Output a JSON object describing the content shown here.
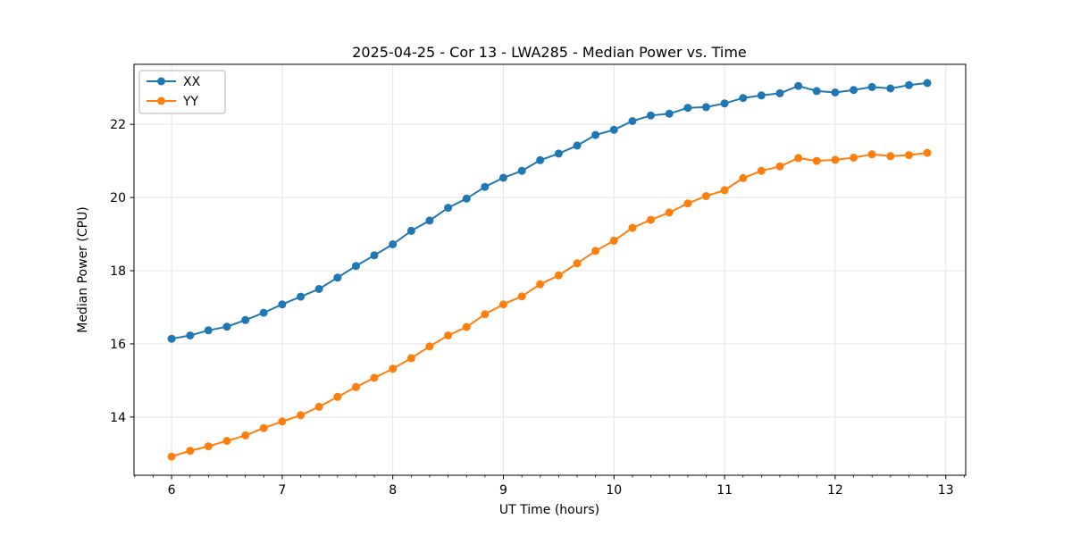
{
  "chart_data": {
    "type": "line",
    "title": "2025-04-25 - Cor 13 - LWA285 - Median Power vs. Time",
    "xlabel": "UT Time (hours)",
    "ylabel": "Median Power (CPU)",
    "xlim": [
      5.66,
      13.18
    ],
    "ylim": [
      12.41,
      23.64
    ],
    "xticks": [
      6,
      7,
      8,
      9,
      10,
      11,
      12,
      13
    ],
    "yticks": [
      14,
      16,
      18,
      20,
      22
    ],
    "x_minor_step": 0.16667,
    "grid": true,
    "grid_color": "#e4e4e4",
    "background": "#ffffff",
    "legend_position": "upper-left",
    "x": [
      6.0,
      6.167,
      6.333,
      6.5,
      6.667,
      6.833,
      7.0,
      7.167,
      7.333,
      7.5,
      7.667,
      7.833,
      8.0,
      8.167,
      8.333,
      8.5,
      8.667,
      8.833,
      9.0,
      9.167,
      9.333,
      9.5,
      9.667,
      9.833,
      10.0,
      10.167,
      10.333,
      10.5,
      10.667,
      10.833,
      11.0,
      11.167,
      11.333,
      11.5,
      11.667,
      11.833,
      12.0,
      12.167,
      12.333,
      12.5,
      12.667,
      12.833
    ],
    "series": [
      {
        "name": "XX",
        "color": "#1f77b4",
        "values": [
          16.14,
          16.23,
          16.37,
          16.47,
          16.65,
          16.85,
          17.08,
          17.29,
          17.5,
          17.81,
          18.13,
          18.42,
          18.72,
          19.09,
          19.37,
          19.72,
          19.97,
          20.29,
          20.54,
          20.73,
          21.02,
          21.2,
          21.42,
          21.71,
          21.85,
          22.09,
          22.24,
          22.29,
          22.45,
          22.47,
          22.57,
          22.72,
          22.79,
          22.85,
          23.05,
          22.91,
          22.87,
          22.94,
          23.02,
          22.98,
          23.07,
          23.13
        ]
      },
      {
        "name": "YY",
        "color": "#ff7f0e",
        "values": [
          12.92,
          13.08,
          13.2,
          13.35,
          13.5,
          13.7,
          13.88,
          14.05,
          14.28,
          14.55,
          14.82,
          15.07,
          15.32,
          15.61,
          15.93,
          16.23,
          16.46,
          16.81,
          17.08,
          17.3,
          17.63,
          17.87,
          18.2,
          18.54,
          18.82,
          19.17,
          19.39,
          19.59,
          19.84,
          20.04,
          20.2,
          20.53,
          20.73,
          20.85,
          21.08,
          21.0,
          21.03,
          21.09,
          21.18,
          21.13,
          21.16,
          21.22
        ]
      }
    ]
  }
}
